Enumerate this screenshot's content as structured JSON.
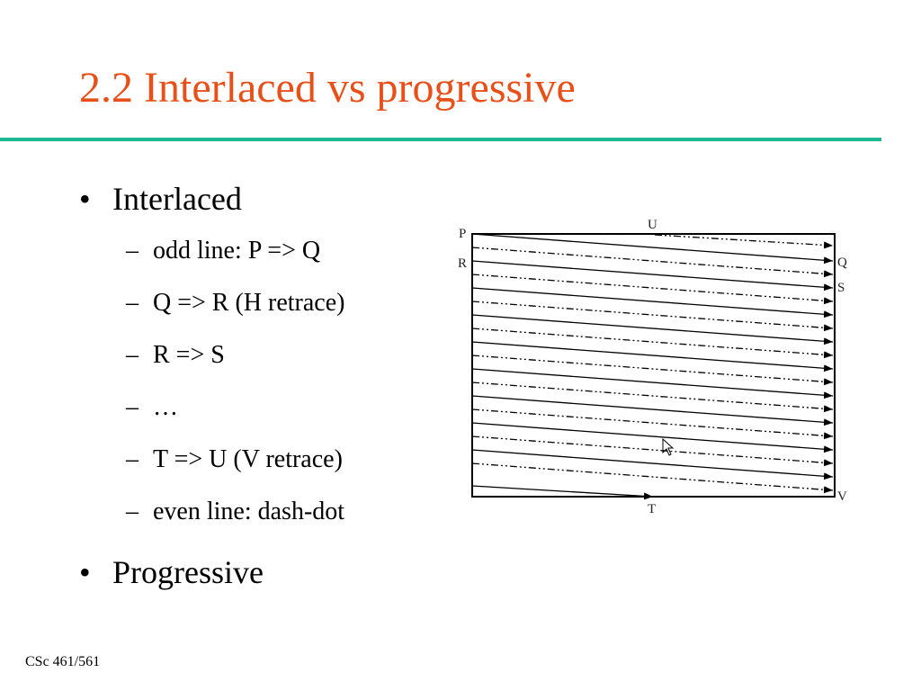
{
  "title": "2.2 Interlaced vs progressive",
  "bullets": [
    {
      "text": "Interlaced",
      "items": [
        "odd line: P => Q",
        "Q => R (H retrace)",
        "R => S",
        "…",
        "T => U (V retrace)",
        "even line: dash-dot"
      ]
    },
    {
      "text": "Progressive",
      "items": []
    }
  ],
  "diagram": {
    "labels": {
      "P": "P",
      "U": "U",
      "R": "R",
      "Q": "Q",
      "S": "S",
      "V": "V",
      "T": "T"
    }
  },
  "footer": "CSc 461/561"
}
